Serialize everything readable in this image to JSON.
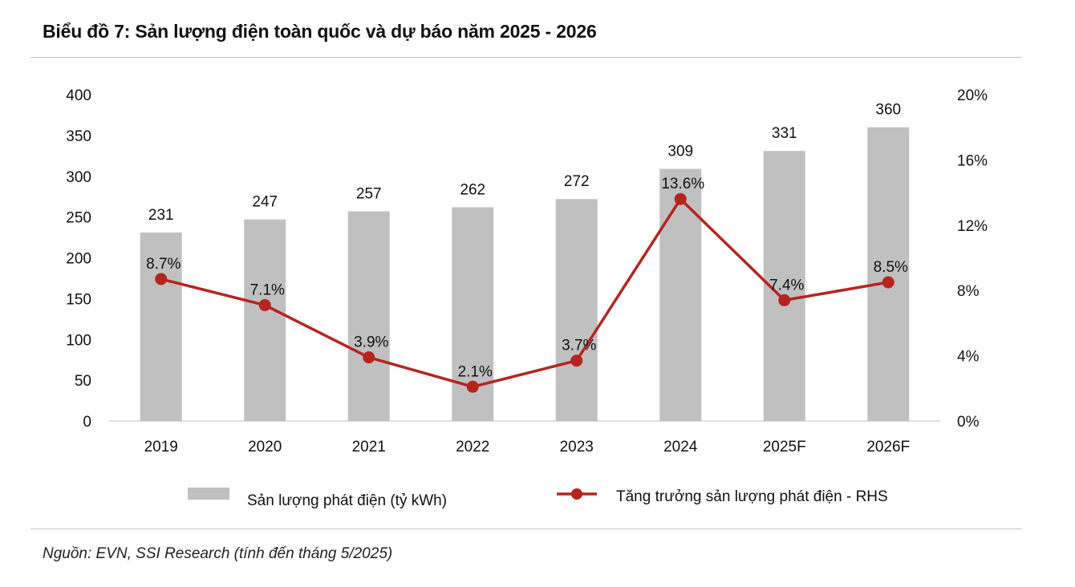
{
  "title": "Biểu đồ 7: Sản lượng điện toàn quốc và dự báo năm 2025 - 2026",
  "source": "Nguồn: EVN, SSI Research (tính đến tháng 5/2025)",
  "chart_data": {
    "type": "bar",
    "categories": [
      "2019",
      "2020",
      "2021",
      "2022",
      "2023",
      "2024",
      "2025F",
      "2026F"
    ],
    "series": [
      {
        "name": "Sản lượng phát điện (tỷ kWh)",
        "type": "bar",
        "axis": "left",
        "color": "#c0c0c0",
        "values": [
          231,
          247,
          257,
          262,
          272,
          309,
          331,
          360
        ],
        "labels": [
          "231",
          "247",
          "257",
          "262",
          "272",
          "309",
          "331",
          "360"
        ]
      },
      {
        "name": "Tăng trưởng sản lượng phát điện - RHS",
        "type": "line",
        "axis": "right",
        "color": "#b5251f",
        "values": [
          8.7,
          7.1,
          3.9,
          2.1,
          3.7,
          13.6,
          7.4,
          8.5
        ],
        "labels": [
          "8.7%",
          "7.1%",
          "3.9%",
          "2.1%",
          "3.7%",
          "13.6%",
          "7.4%",
          "8.5%"
        ]
      }
    ],
    "y_left": {
      "ylim": [
        0,
        400
      ],
      "ticks": [
        "0",
        "50",
        "100",
        "150",
        "200",
        "250",
        "300",
        "350",
        "400"
      ]
    },
    "y_right": {
      "ylim": [
        0,
        20
      ],
      "ticks": [
        "0%",
        "4%",
        "8%",
        "12%",
        "16%",
        "20%"
      ]
    },
    "legend": "bottom",
    "grid": false
  }
}
